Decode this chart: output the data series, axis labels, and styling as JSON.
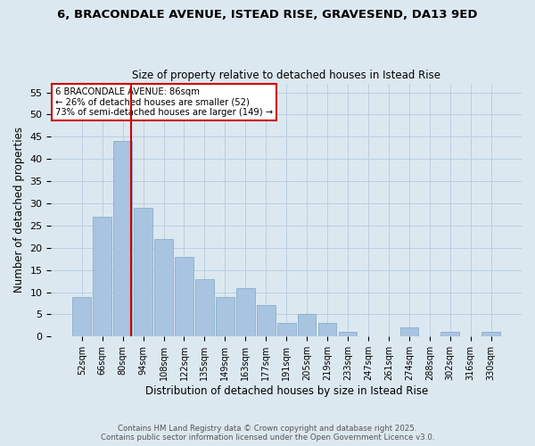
{
  "title_line1": "6, BRACONDALE AVENUE, ISTEAD RISE, GRAVESEND, DA13 9ED",
  "title_line2": "Size of property relative to detached houses in Istead Rise",
  "xlabel": "Distribution of detached houses by size in Istead Rise",
  "ylabel": "Number of detached properties",
  "bar_labels": [
    "52sqm",
    "66sqm",
    "80sqm",
    "94sqm",
    "108sqm",
    "122sqm",
    "135sqm",
    "149sqm",
    "163sqm",
    "177sqm",
    "191sqm",
    "205sqm",
    "219sqm",
    "233sqm",
    "247sqm",
    "261sqm",
    "274sqm",
    "288sqm",
    "302sqm",
    "316sqm",
    "330sqm"
  ],
  "bar_values": [
    9,
    27,
    44,
    29,
    22,
    18,
    13,
    9,
    11,
    7,
    3,
    5,
    3,
    1,
    0,
    0,
    2,
    0,
    1,
    0,
    1
  ],
  "bar_color": "#a8c4e0",
  "bar_edge_color": "#8aafc8",
  "vline_color": "#cc0000",
  "annotation_text": "6 BRACONDALE AVENUE: 86sqm\n← 26% of detached houses are smaller (52)\n73% of semi-detached houses are larger (149) →",
  "annotation_box_color": "#ffffff",
  "annotation_box_edge": "#cc0000",
  "ylim": [
    0,
    57
  ],
  "yticks": [
    0,
    5,
    10,
    15,
    20,
    25,
    30,
    35,
    40,
    45,
    50,
    55
  ],
  "grid_color": "#b8cfe0",
  "bg_color": "#dce8f0",
  "footer_line1": "Contains HM Land Registry data © Crown copyright and database right 2025.",
  "footer_line2": "Contains public sector information licensed under the Open Government Licence v3.0."
}
